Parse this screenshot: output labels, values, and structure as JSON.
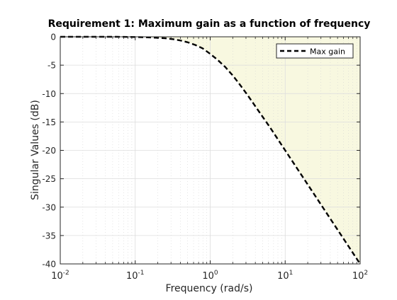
{
  "chart_data": {
    "type": "line",
    "title": "Requirement 1: Maximum gain as a function of frequency",
    "xlabel": "Frequency (rad/s)",
    "ylabel": "Singular Values (dB)",
    "xscale": "log",
    "xlim": [
      0.01,
      100
    ],
    "ylim": [
      -40,
      0
    ],
    "x_ticks": [
      0.01,
      0.1,
      1,
      10,
      100
    ],
    "x_tick_labels": [
      {
        "base": "10",
        "exp": "-2"
      },
      {
        "base": "10",
        "exp": "-1"
      },
      {
        "base": "10",
        "exp": "0"
      },
      {
        "base": "10",
        "exp": "1"
      },
      {
        "base": "10",
        "exp": "2"
      }
    ],
    "y_ticks": [
      0,
      -5,
      -10,
      -15,
      -20,
      -25,
      -30,
      -35,
      -40
    ],
    "y_tick_labels": [
      "0",
      "-5",
      "-10",
      "-15",
      "-20",
      "-25",
      "-30",
      "-35",
      "-40"
    ],
    "grid": true,
    "minor_grid": true,
    "legend_position": "top-right",
    "colors": {
      "line": "#000000",
      "region_fill": "#f8f8e0",
      "grid": "#d9d9d9",
      "axes": "#262626"
    },
    "series": [
      {
        "name": "Max gain",
        "style": "dashed",
        "fill_above": true,
        "x": [
          0.01,
          0.0178,
          0.0316,
          0.0562,
          0.1,
          0.1585,
          0.2512,
          0.3162,
          0.3981,
          0.5012,
          0.631,
          0.7943,
          1,
          1.2589,
          1.5849,
          1.9953,
          2.5119,
          3.1623,
          3.9811,
          5.0119,
          6.3096,
          7.9433,
          10,
          15.8489,
          25.1189,
          39.8107,
          63.0957,
          100
        ],
        "y": [
          0,
          0,
          0,
          0,
          -0.04,
          -0.11,
          -0.26,
          -0.41,
          -0.64,
          -0.97,
          -1.43,
          -2.04,
          -3.01,
          -4.08,
          -5.31,
          -6.8,
          -8.5,
          -10.3,
          -12.2,
          -14.1,
          -16.0,
          -18.0,
          -20.0,
          -24.0,
          -28.0,
          -32.0,
          -36.0,
          -40.0
        ]
      }
    ]
  }
}
